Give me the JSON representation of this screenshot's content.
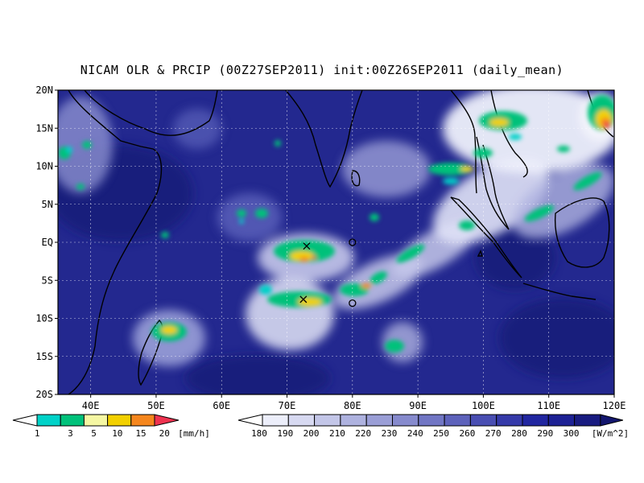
{
  "title": "NICAM OLR & PRCIP (00Z27SEP2011) init:00Z26SEP2011 (daily_mean)",
  "map": {
    "lon_range": [
      35,
      120
    ],
    "lat_range": [
      -20,
      20
    ],
    "ocean_color": "#23288f",
    "deep_color": "#171b78",
    "y_ticks": [
      "20N",
      "15N",
      "10N",
      "5N",
      "EQ",
      "5S",
      "10S",
      "15S",
      "20S"
    ],
    "x_ticks": [
      "40E",
      "50E",
      "60E",
      "70E",
      "80E",
      "90E",
      "100E",
      "110E",
      "120E"
    ],
    "markers": [
      {
        "type": "x",
        "lon": 73,
        "lat": -0.5
      },
      {
        "type": "x",
        "lon": 72.5,
        "lat": -7.5
      },
      {
        "type": "o",
        "lon": 80,
        "lat": 0
      },
      {
        "type": "o",
        "lon": 80,
        "lat": -8
      }
    ]
  },
  "precip_colorbar": {
    "unit": "[mm/h]",
    "labels": [
      "1",
      "3",
      "5",
      "10",
      "15",
      "20"
    ],
    "colors": [
      "#00d2c8",
      "#00c17a",
      "#f5f7a3",
      "#f2d000",
      "#f5861d",
      "#ee3350"
    ]
  },
  "olr_colorbar": {
    "unit": "[W/m^2]",
    "labels": [
      "180",
      "190",
      "200",
      "210",
      "220",
      "230",
      "240",
      "250",
      "260",
      "270",
      "280",
      "290",
      "300"
    ],
    "colors": [
      "#eceefa",
      "#d7d9f1",
      "#c3c6e8",
      "#aeb2df",
      "#9a9ed6",
      "#868acd",
      "#7176c4",
      "#5d62bb",
      "#494eb2",
      "#353aa9",
      "#2126a0",
      "#1d2194",
      "#181b80",
      "#13166e"
    ]
  }
}
